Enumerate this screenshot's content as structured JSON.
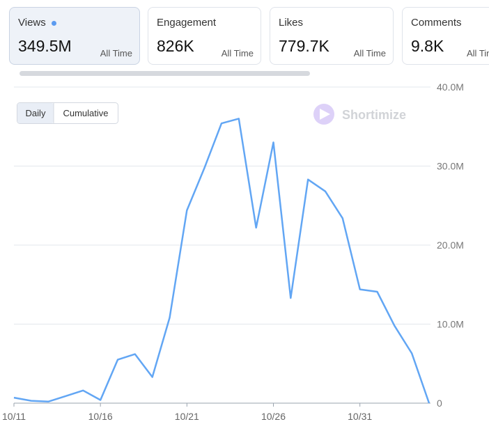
{
  "cards": [
    {
      "label": "Views",
      "value": "349.5M",
      "period": "All Time"
    },
    {
      "label": "Engagement",
      "value": "826K",
      "period": "All Time"
    },
    {
      "label": "Likes",
      "value": "779.7K",
      "period": "All Time"
    },
    {
      "label": "Comments",
      "value": "9.8K",
      "period": "All Time"
    }
  ],
  "toggle": [
    "Daily",
    "Cumulative"
  ],
  "watermark": "Shortimize",
  "chart_data": {
    "type": "line",
    "color": "#62a6f4",
    "grid": true,
    "categories": [
      "10/11",
      null,
      null,
      null,
      null,
      "10/16",
      null,
      null,
      null,
      null,
      "10/21",
      null,
      null,
      null,
      null,
      "10/26",
      null,
      null,
      null,
      null,
      "10/31",
      null,
      null,
      null,
      null
    ],
    "values": [
      0.7,
      0.3,
      0.2,
      0.9,
      1.6,
      0.4,
      5.5,
      6.2,
      3.3,
      10.8,
      24.4,
      29.7,
      35.4,
      36.0,
      22.2,
      33.0,
      13.3,
      28.3,
      26.8,
      23.4,
      14.4,
      14.1,
      9.8,
      6.3,
      0
    ],
    "ylim": [
      0,
      40
    ],
    "yticks": [
      0,
      {
        "value": 10,
        "label": "10.0M"
      },
      {
        "value": 20,
        "label": "20.0M"
      },
      {
        "value": 30,
        "label": "30.0M"
      },
      {
        "value": 40,
        "label": "40.0M"
      }
    ]
  }
}
